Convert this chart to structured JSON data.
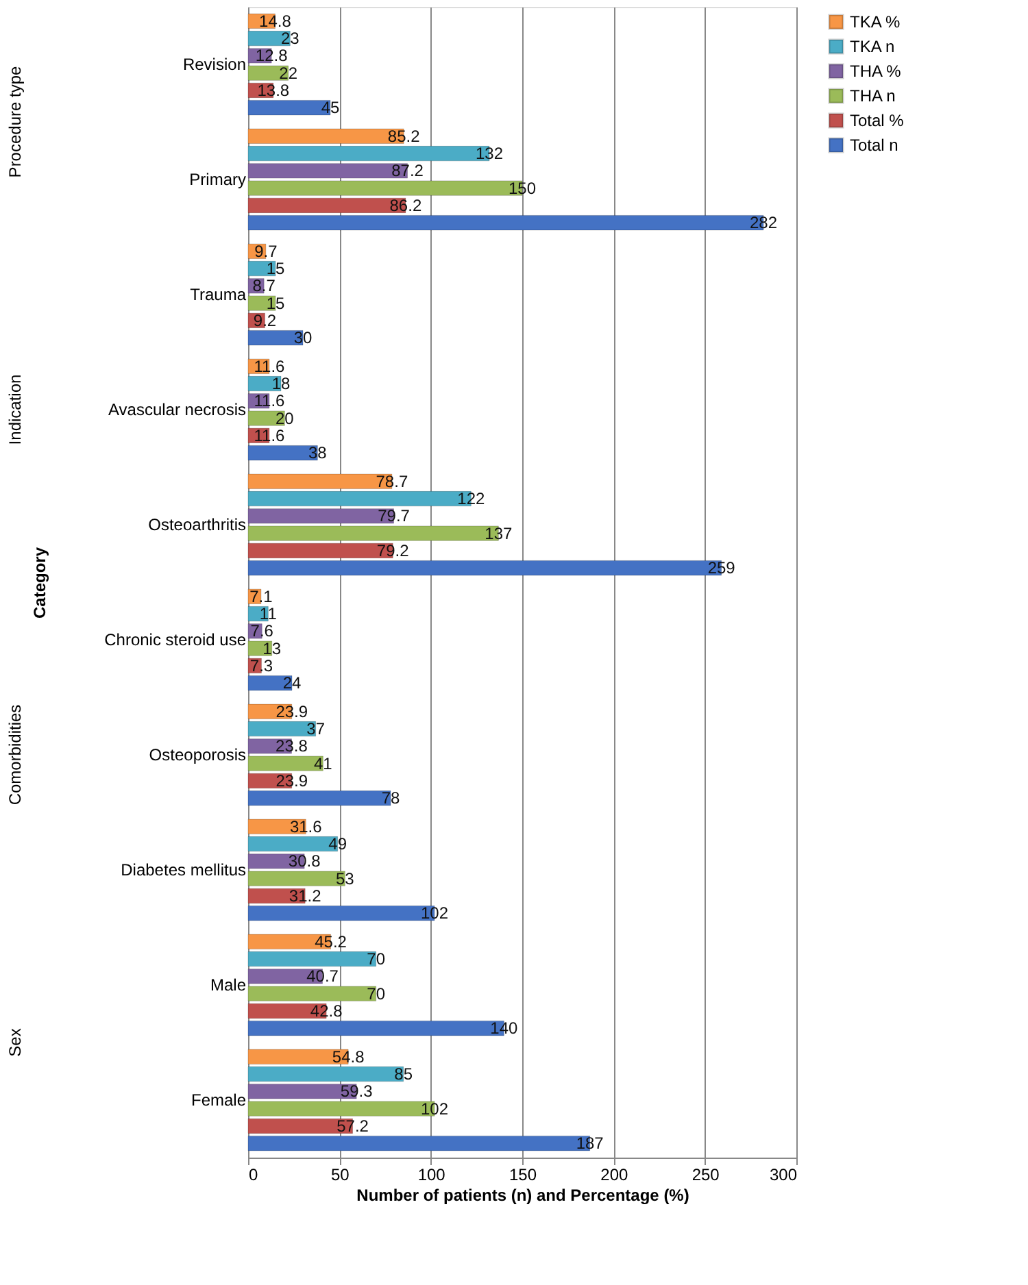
{
  "chart_data": {
    "type": "bar",
    "orientation": "horizontal",
    "xlabel": "Number of patients (n) and Percentage (%)",
    "ylabel": "Category",
    "categories": [
      "Revision",
      "Primary",
      "Trauma",
      "Avascular necrosis",
      "Osteoarthritis",
      "Chronic steroid use",
      "Osteoporosis",
      "Diabetes mellitus",
      "Male",
      "Female"
    ],
    "series": [
      {
        "name": "Total n",
        "color": "#4472c4",
        "values": [
          45,
          282,
          30,
          38,
          259,
          24,
          78,
          102,
          140,
          187
        ]
      },
      {
        "name": "Total %",
        "color": "#c0504d",
        "values": [
          13.8,
          86.2,
          9.2,
          11.6,
          79.2,
          7.3,
          23.9,
          31.2,
          42.8,
          57.2
        ]
      },
      {
        "name": "THA n",
        "color": "#9bbb59",
        "values": [
          22,
          150,
          15,
          20,
          137,
          13,
          41,
          53,
          70,
          102
        ]
      },
      {
        "name": "THA %",
        "color": "#8064a2",
        "values": [
          12.8,
          87.2,
          8.7,
          11.6,
          79.7,
          7.6,
          23.8,
          30.8,
          40.7,
          59.3
        ]
      },
      {
        "name": "TKA n",
        "color": "#4bacc6",
        "values": [
          23,
          132,
          15,
          18,
          122,
          11,
          37,
          49,
          70,
          85
        ]
      },
      {
        "name": "TKA %",
        "color": "#f79646",
        "values": [
          14.8,
          85.2,
          9.7,
          11.6,
          78.7,
          7.1,
          23.9,
          31.6,
          45.2,
          54.8
        ]
      }
    ],
    "xlim": [
      0,
      300
    ],
    "xticks": [
      0,
      50,
      100,
      150,
      200,
      250,
      300
    ],
    "grid": "x",
    "legend": "right",
    "data_labels": true,
    "annotations": [
      "Procedure type",
      "Indication",
      "Comorbidities",
      "Sex"
    ]
  }
}
